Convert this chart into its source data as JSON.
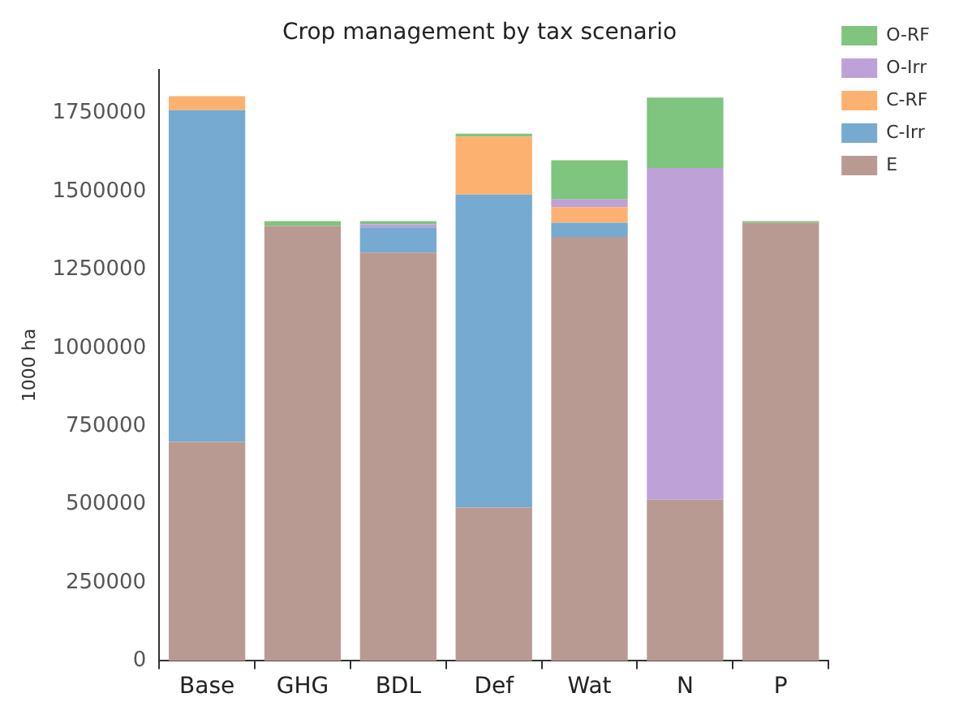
{
  "chart_data": {
    "type": "bar",
    "title": "Crop management by tax scenario",
    "ylabel": "1000 ha",
    "stacked": true,
    "categories": [
      "Base",
      "GHG",
      "BDL",
      "Def",
      "Wat",
      "N",
      "P"
    ],
    "series": [
      {
        "name": "E",
        "color": "#b99a92",
        "values": [
          700000,
          1390000,
          1305000,
          490000,
          1355000,
          515000,
          1400000
        ]
      },
      {
        "name": "C-Irr",
        "color": "#76aad0",
        "values": [
          1060000,
          0,
          80000,
          1000000,
          45000,
          0,
          0
        ]
      },
      {
        "name": "C-RF",
        "color": "#fdb171",
        "values": [
          45000,
          0,
          0,
          185000,
          50000,
          0,
          0
        ]
      },
      {
        "name": "O-Irr",
        "color": "#bea1d6",
        "values": [
          0,
          0,
          10000,
          0,
          25000,
          1060000,
          0
        ]
      },
      {
        "name": "O-RF",
        "color": "#7fc47f",
        "values": [
          0,
          15000,
          10000,
          10000,
          125000,
          225000,
          5000
        ]
      }
    ],
    "ylim": [
      0,
      1890000
    ],
    "yticks": [
      0,
      250000,
      500000,
      750000,
      1000000,
      1250000,
      1500000,
      1750000
    ],
    "grid": false,
    "legend": "right"
  }
}
